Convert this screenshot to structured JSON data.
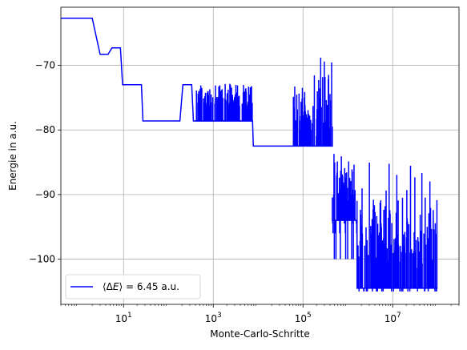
{
  "chart_data": {
    "type": "line",
    "xscale": "log",
    "xlabel": "Monte-Carlo-Schritte",
    "ylabel": "Energie in a.u.",
    "xlim": [
      0.4,
      300000000.0
    ],
    "ylim": [
      -107,
      -61
    ],
    "xticks": [
      {
        "value": 10,
        "base": "10",
        "exp": "1"
      },
      {
        "value": 1000,
        "base": "10",
        "exp": "3"
      },
      {
        "value": 100000,
        "base": "10",
        "exp": "5"
      },
      {
        "value": 10000000,
        "base": "10",
        "exp": "7"
      }
    ],
    "yticks": [
      {
        "value": -70,
        "label": "−70"
      },
      {
        "value": -80,
        "label": "−80"
      },
      {
        "value": -90,
        "label": "−90"
      },
      {
        "value": -100,
        "label": "−100"
      }
    ],
    "grid": true,
    "legend_position": "lower-left",
    "series": [
      {
        "name": "⟨ΔE⟩ = 6.45 a.u.",
        "legend_prefix": "⟨Δ",
        "legend_italic": "E",
        "legend_suffix": "⟩ = 6.45 a.u.",
        "color": "#0000ff",
        "segments": [
          {
            "type": "line",
            "points": [
              [
                0.4,
                -62.7
              ],
              [
                2,
                -62.7
              ],
              [
                3,
                -68.3
              ],
              [
                4.5,
                -68.3
              ],
              [
                5.5,
                -67.3
              ],
              [
                8.5,
                -67.3
              ],
              [
                9.5,
                -73
              ],
              [
                25,
                -73
              ],
              [
                27,
                -78.6
              ],
              [
                180,
                -78.6
              ],
              [
                210,
                -73
              ],
              [
                330,
                -73
              ],
              [
                360,
                -78.6
              ],
              [
                7500,
                -78.6
              ],
              [
                7800,
                -82.5
              ],
              [
                60000,
                -82.5
              ]
            ]
          },
          {
            "type": "noise",
            "x0": 400,
            "x1": 7500,
            "base": -78.6,
            "tops": [
              -73,
              -72.5,
              -73,
              -74,
              -72.8
            ],
            "bottoms": [
              -78.6
            ]
          },
          {
            "type": "noise",
            "x0": 60000,
            "x1": 450000,
            "base": -82.5,
            "tops": [
              -77,
              -79,
              -78,
              -73.5,
              -72.5,
              -71,
              -74,
              -68.5
            ],
            "bottoms": [
              -82.5
            ]
          },
          {
            "type": "noise",
            "x0": 450000,
            "x1": 1600000,
            "base": -94,
            "tops": [
              -83.5,
              -85,
              -86,
              -88,
              -84
            ],
            "bottoms": [
              -94.5,
              -96,
              -100
            ]
          },
          {
            "type": "noise",
            "x0": 1600000,
            "x1": 100000000,
            "base": -104.5,
            "tops": [
              -94,
              -96,
              -90,
              -92,
              -89,
              -93,
              -84.5
            ],
            "bottoms": [
              -104.5,
              -105
            ]
          }
        ]
      }
    ]
  }
}
